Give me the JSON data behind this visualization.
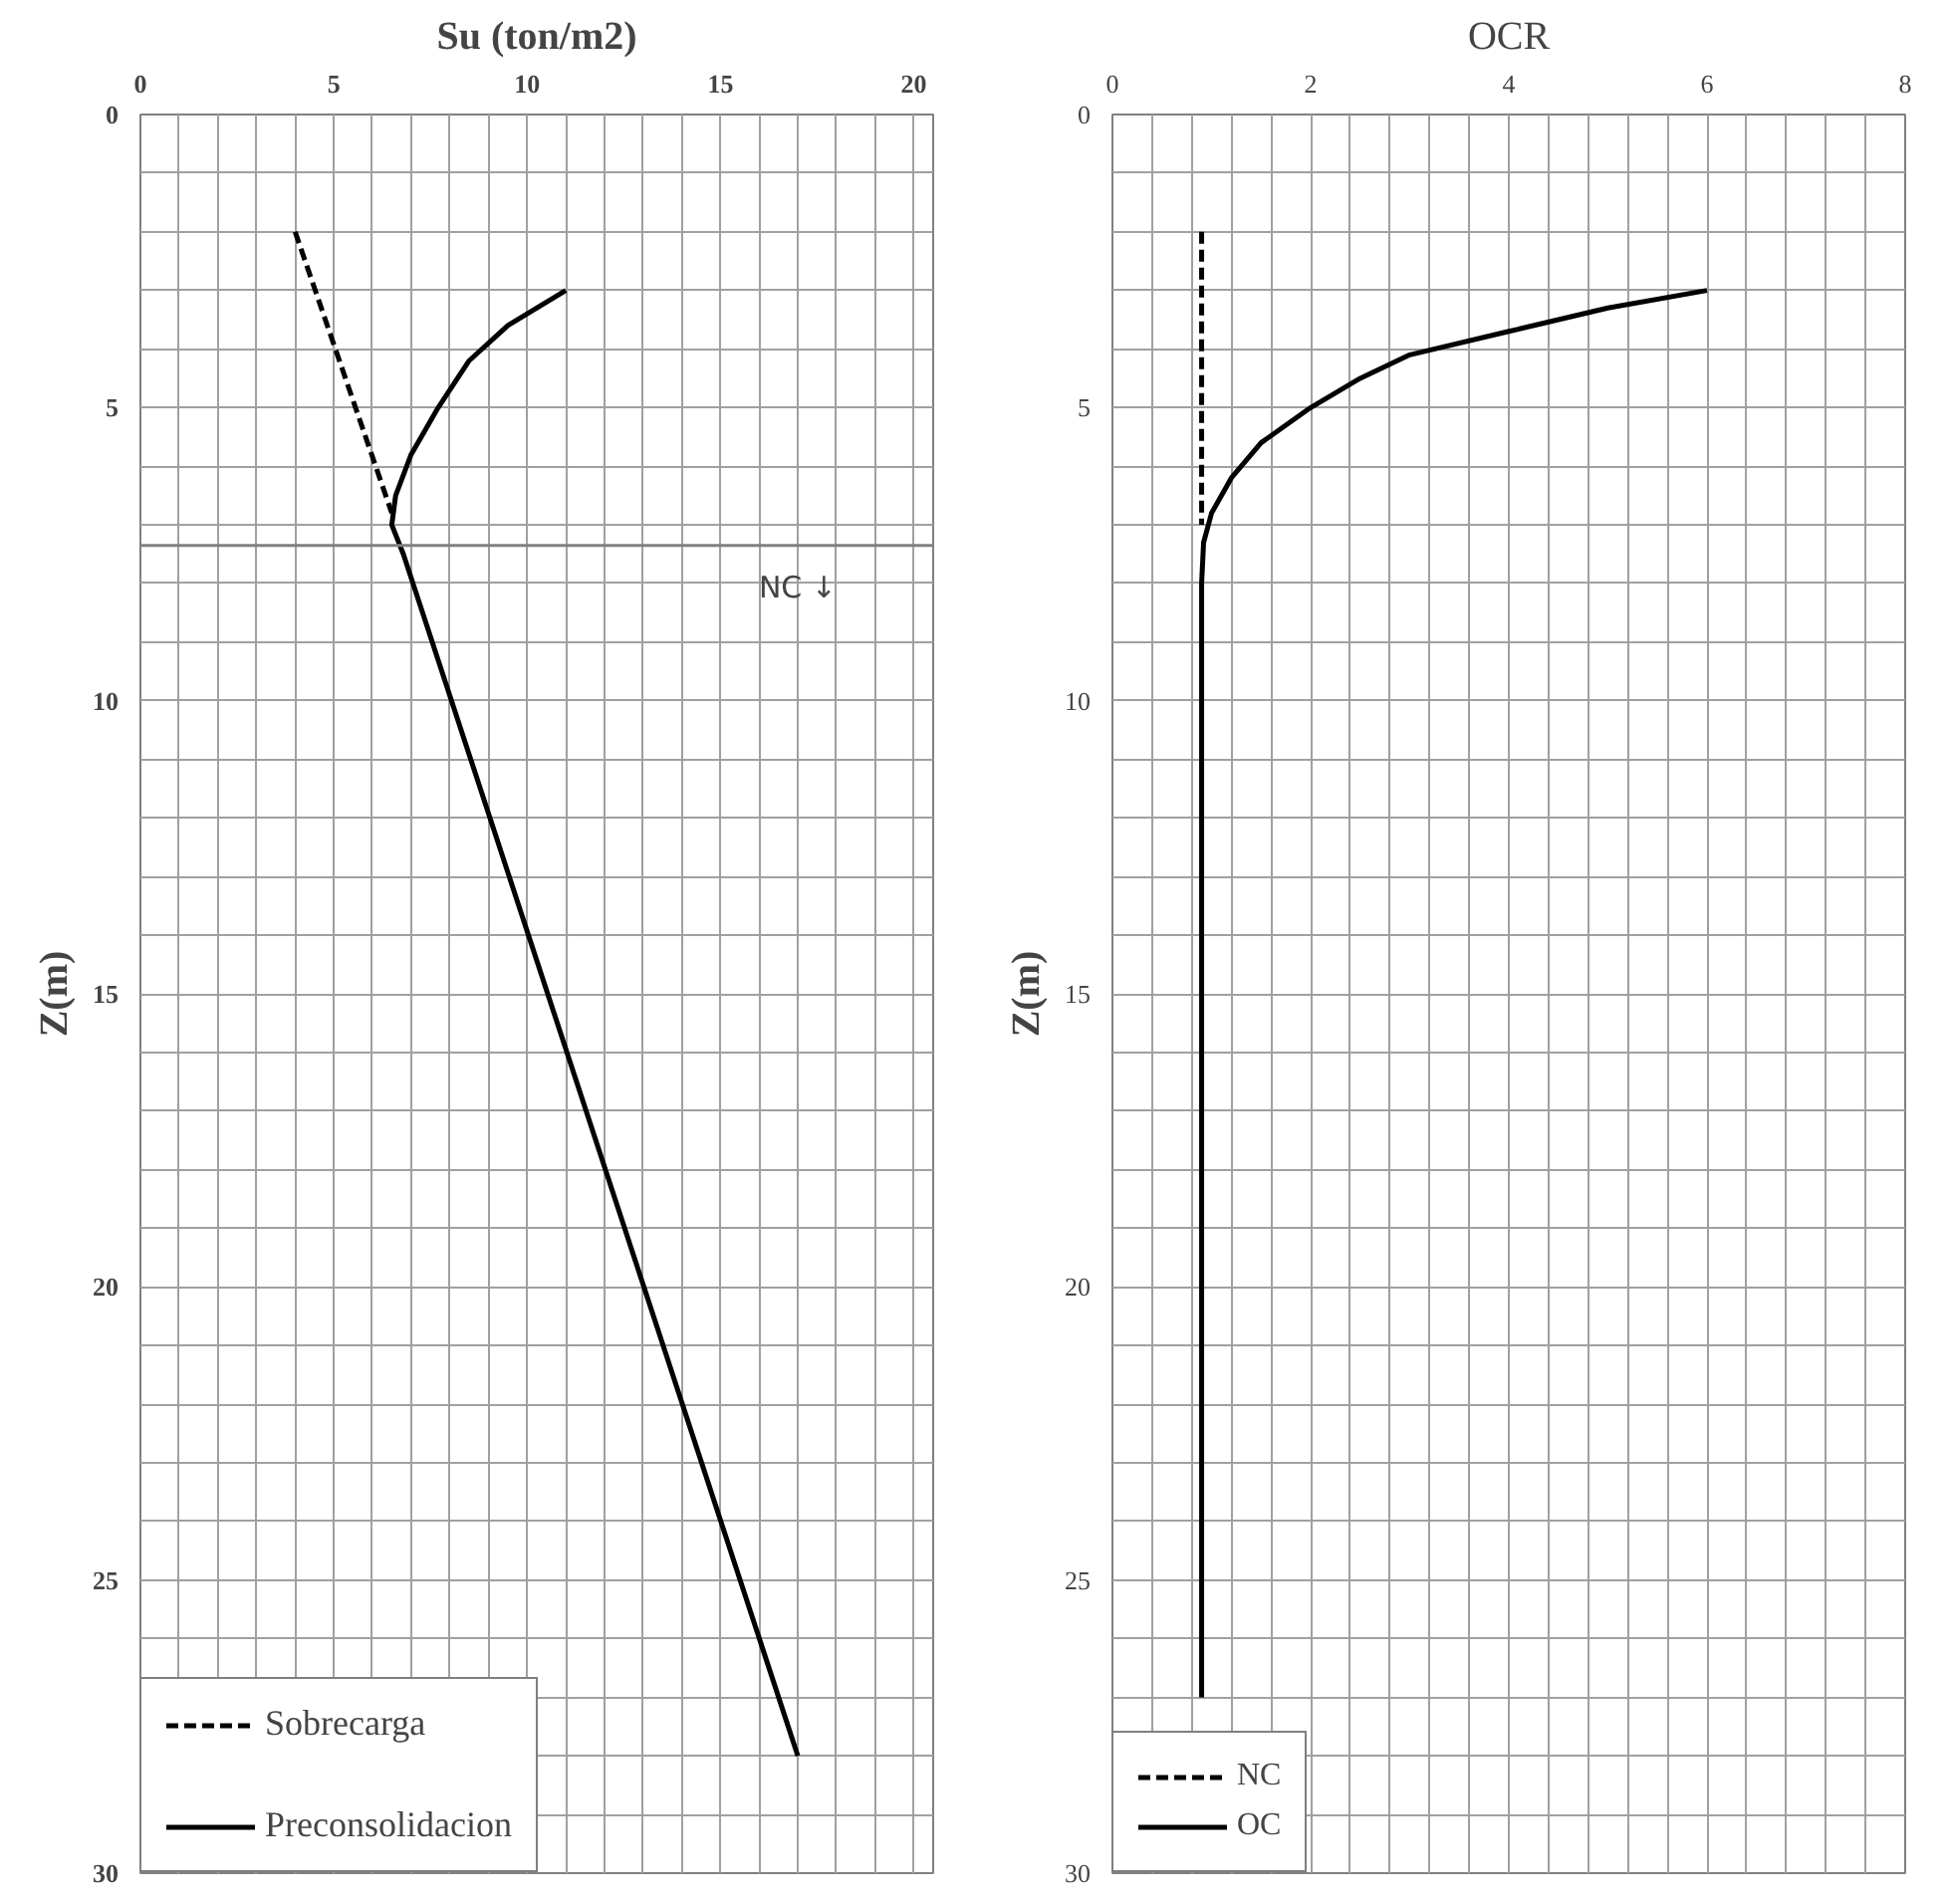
{
  "chart_data": [
    {
      "type": "line",
      "title": "Su (ton/m2)",
      "ylabel": "Z(m)",
      "xlim": [
        0,
        20.5
      ],
      "ylim": [
        30,
        0
      ],
      "xticks": [
        0,
        {
          "value": 1,
          "label": null
        },
        {
          "value": 2,
          "label": null
        },
        {
          "value": 3,
          "label": null
        },
        {
          "value": 4,
          "label": null
        },
        5,
        {
          "value": 6,
          "label": null
        },
        {
          "value": 7,
          "label": null
        },
        {
          "value": 8,
          "label": null
        },
        {
          "value": 9,
          "label": null
        },
        10,
        {
          "value": 11,
          "label": null
        },
        {
          "value": 12,
          "label": null
        },
        {
          "value": 13,
          "label": null
        },
        {
          "value": 14,
          "label": null
        },
        15,
        {
          "value": 16,
          "label": null
        },
        {
          "value": 17,
          "label": null
        },
        {
          "value": 18,
          "label": null
        },
        {
          "value": 19,
          "label": null
        },
        20
      ],
      "yticks": [
        0,
        {
          "value": 1,
          "label": null
        },
        {
          "value": 2,
          "label": null
        },
        {
          "value": 3,
          "label": null
        },
        {
          "value": 4,
          "label": null
        },
        5,
        {
          "value": 6,
          "label": null
        },
        {
          "value": 7,
          "label": null
        },
        {
          "value": 8,
          "label": null
        },
        {
          "value": 9,
          "label": null
        },
        10,
        {
          "value": 11,
          "label": null
        },
        {
          "value": 12,
          "label": null
        },
        {
          "value": 13,
          "label": null
        },
        {
          "value": 14,
          "label": null
        },
        15,
        {
          "value": 16,
          "label": null
        },
        {
          "value": 17,
          "label": null
        },
        {
          "value": 18,
          "label": null
        },
        {
          "value": 19,
          "label": null
        },
        20,
        {
          "value": 21,
          "label": null
        },
        {
          "value": 22,
          "label": null
        },
        {
          "value": 23,
          "label": null
        },
        {
          "value": 24,
          "label": null
        },
        25,
        {
          "value": 26,
          "label": null
        },
        {
          "value": 27,
          "label": null
        },
        {
          "value": 28,
          "label": null
        },
        {
          "value": 29,
          "label": null
        },
        30
      ],
      "grid": true,
      "legend": "bottom left",
      "series": [
        {
          "name": "Sobrecarga",
          "color": "#000000",
          "line_style": "dashed",
          "x": [
            4,
            6.5
          ],
          "values": [
            2,
            6.8
          ]
        },
        {
          "name": "Preconsolidacion",
          "color": "#000000",
          "line_style": "solid",
          "x": [
            11,
            9.5,
            8.5,
            7.7,
            7.0,
            6.6,
            6.5,
            6.8,
            17
          ],
          "values": [
            3,
            3.6,
            4.2,
            5,
            5.8,
            6.5,
            7.0,
            7.5,
            28
          ]
        }
      ],
      "ref_lines": [
        {
          "axis": "y",
          "value": 7.35,
          "label": "NC ↓",
          "color": "#808080"
        }
      ]
    },
    {
      "type": "line",
      "title": "OCR",
      "ylabel": "Z(m)",
      "xlim": [
        0,
        8
      ],
      "ylim": [
        30,
        0
      ],
      "xticks": [
        0,
        {
          "value": 0.4,
          "label": null
        },
        {
          "value": 0.8,
          "label": null
        },
        {
          "value": 1.2,
          "label": null
        },
        {
          "value": 1.6,
          "label": null
        },
        2,
        {
          "value": 2.4,
          "label": null
        },
        {
          "value": 2.8,
          "label": null
        },
        {
          "value": 3.2,
          "label": null
        },
        {
          "value": 3.6,
          "label": null
        },
        4,
        {
          "value": 4.4,
          "label": null
        },
        {
          "value": 4.8,
          "label": null
        },
        {
          "value": 5.2,
          "label": null
        },
        {
          "value": 5.6,
          "label": null
        },
        6,
        {
          "value": 6.4,
          "label": null
        },
        {
          "value": 6.8,
          "label": null
        },
        {
          "value": 7.2,
          "label": null
        },
        {
          "value": 7.6,
          "label": null
        },
        8
      ],
      "yticks": [
        0,
        {
          "value": 1,
          "label": null
        },
        {
          "value": 2,
          "label": null
        },
        {
          "value": 3,
          "label": null
        },
        {
          "value": 4,
          "label": null
        },
        5,
        {
          "value": 6,
          "label": null
        },
        {
          "value": 7,
          "label": null
        },
        {
          "value": 8,
          "label": null
        },
        {
          "value": 9,
          "label": null
        },
        10,
        {
          "value": 11,
          "label": null
        },
        {
          "value": 12,
          "label": null
        },
        {
          "value": 13,
          "label": null
        },
        {
          "value": 14,
          "label": null
        },
        15,
        {
          "value": 16,
          "label": null
        },
        {
          "value": 17,
          "label": null
        },
        {
          "value": 18,
          "label": null
        },
        {
          "value": 19,
          "label": null
        },
        20,
        {
          "value": 21,
          "label": null
        },
        {
          "value": 22,
          "label": null
        },
        {
          "value": 23,
          "label": null
        },
        {
          "value": 24,
          "label": null
        },
        25,
        {
          "value": 26,
          "label": null
        },
        {
          "value": 27,
          "label": null
        },
        {
          "value": 28,
          "label": null
        },
        {
          "value": 29,
          "label": null
        },
        30
      ],
      "grid": true,
      "legend": "bottom left",
      "series": [
        {
          "name": "NC",
          "color": "#000000",
          "line_style": "dashed",
          "x": [
            0.9,
            0.9
          ],
          "values": [
            2,
            7
          ]
        },
        {
          "name": "OC",
          "color": "#000000",
          "line_style": "solid",
          "x": [
            6,
            5,
            4,
            3,
            2.5,
            2,
            1.5,
            1.2,
            1.0,
            0.92,
            0.9,
            0.9
          ],
          "values": [
            3,
            3.3,
            3.7,
            4.1,
            4.5,
            5,
            5.6,
            6.2,
            6.8,
            7.3,
            8,
            27
          ]
        }
      ]
    }
  ]
}
